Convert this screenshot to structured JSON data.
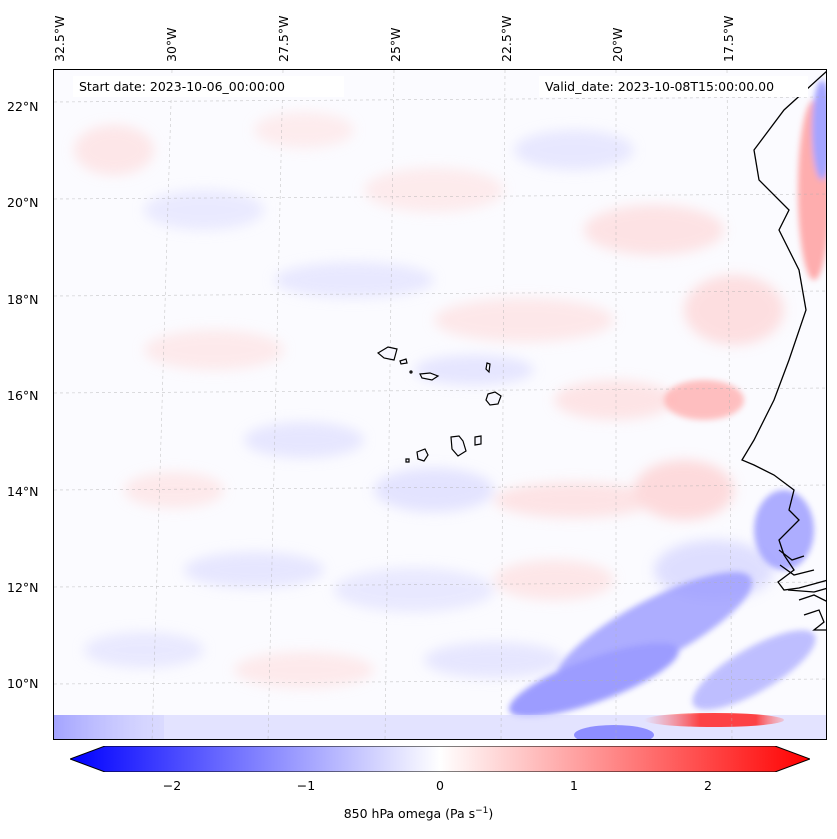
{
  "top_labels": [
    "32.5°W",
    "30°W",
    "27.5°W",
    "25°W",
    "22.5°W",
    "20°W",
    "17.5°W"
  ],
  "lat_labels": [
    "22°N",
    "20°N",
    "18°N",
    "16°N",
    "14°N",
    "12°N",
    "10°N"
  ],
  "start_date": "Start date: 2023-10-06_00:00:00",
  "valid_date": "Valid_date: 2023-10-08T15:00:00.00",
  "colorbar": {
    "ticks": [
      "−2",
      "−1",
      "0",
      "1",
      "2"
    ],
    "tick_values": [
      -2,
      -1,
      0,
      1,
      2
    ],
    "range": [
      -2.5,
      2.5
    ],
    "label": "850 hPa omega (Pa s",
    "label_sup": "−1",
    "label_end": ")",
    "colormap": "bwr",
    "colors": {
      "negative": "#0000ff",
      "zero": "#ffffff",
      "positive": "#ff0000"
    }
  },
  "map": {
    "extent_lon": [
      -33,
      -15.5
    ],
    "extent_lat": [
      9,
      22.6
    ],
    "field": "850 hPa omega",
    "coastline_color": "#000000",
    "gridlines": true
  }
}
